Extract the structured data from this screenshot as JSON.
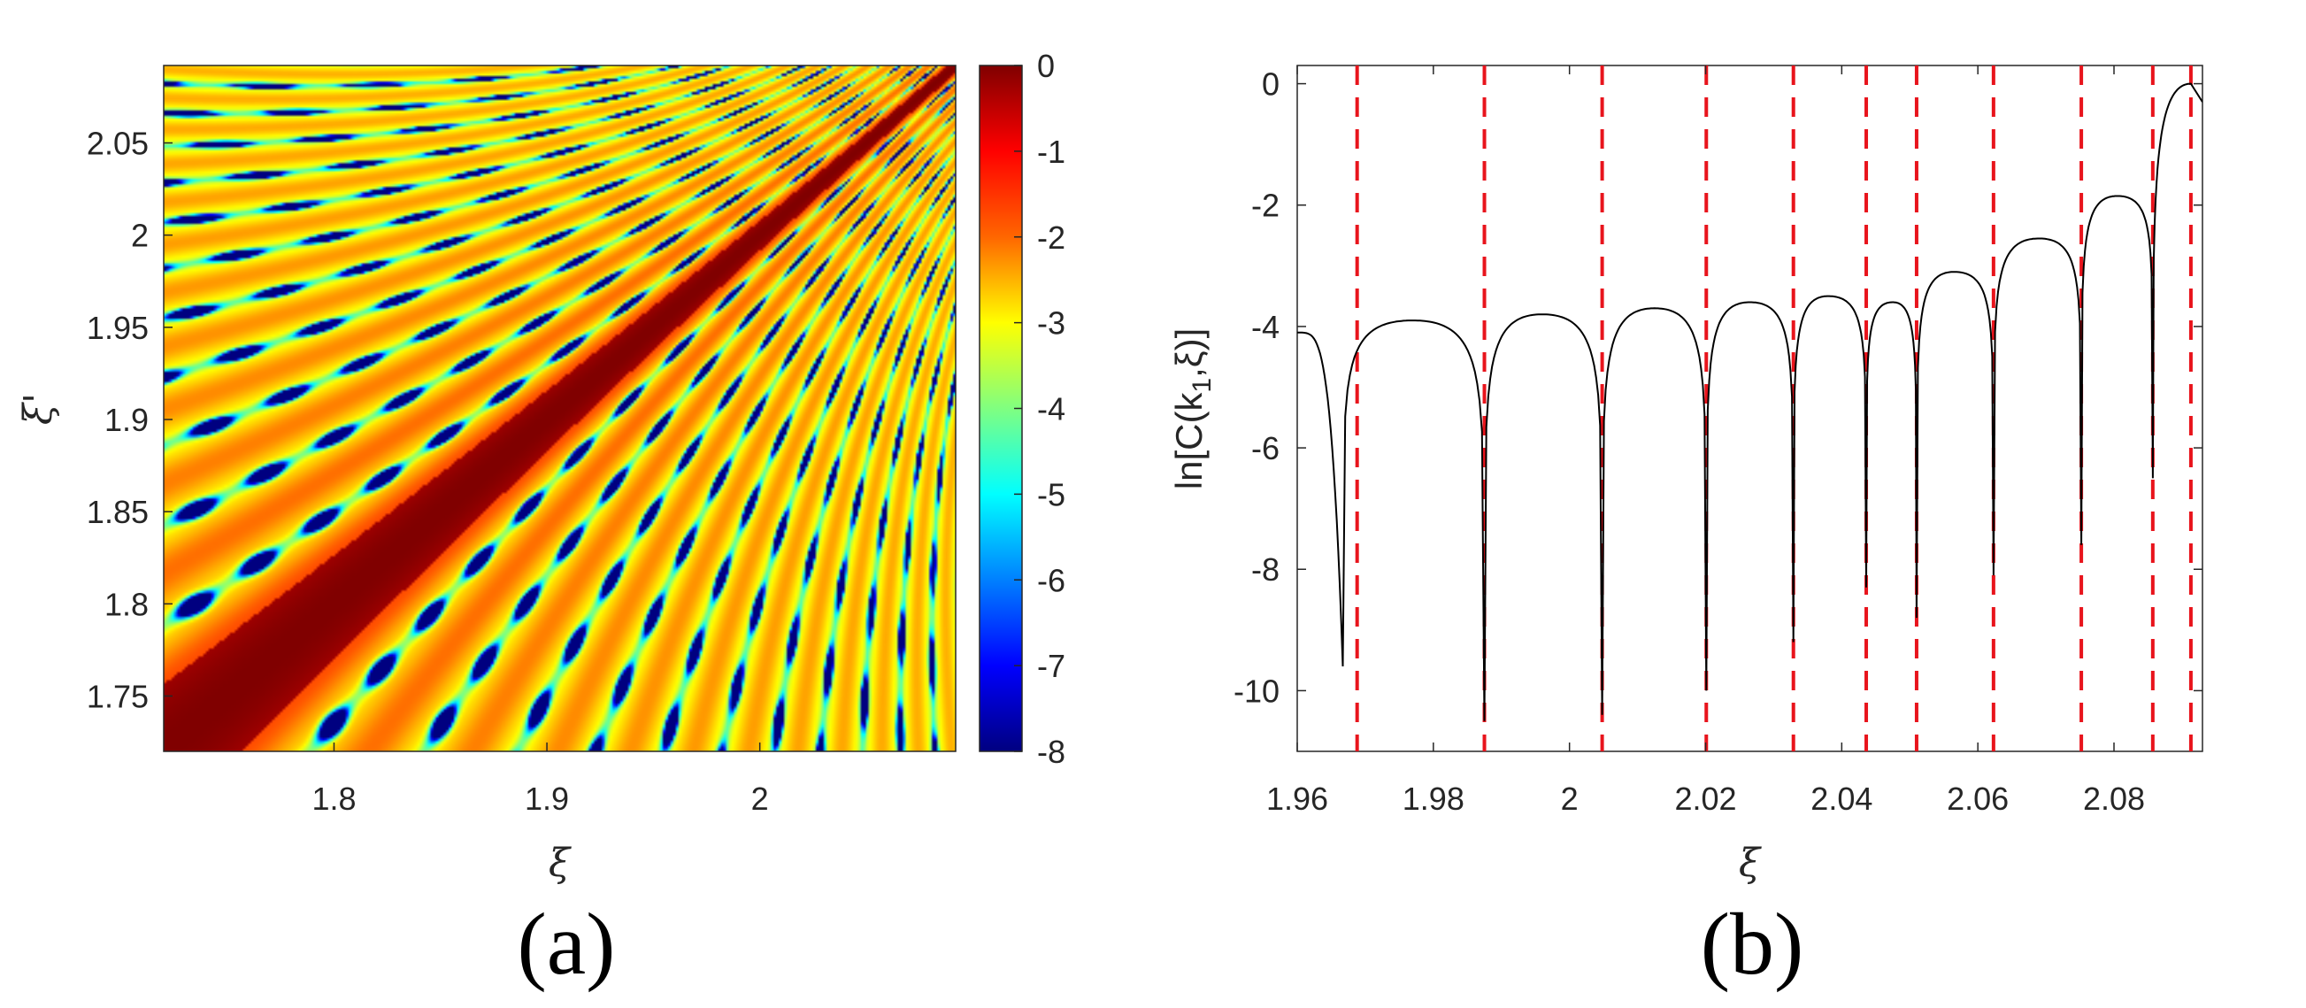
{
  "chart_data": [
    {
      "type": "heatmap",
      "panel_label": "(a)",
      "xlabel": "ξ",
      "ylabel": "ξ'",
      "xlim": [
        1.72,
        2.092
      ],
      "ylim": [
        1.72,
        2.092
      ],
      "xticks": [
        1.8,
        1.9,
        2.0
      ],
      "xtick_labels": [
        "1.8",
        "1.9",
        "2"
      ],
      "yticks": [
        1.75,
        1.8,
        1.85,
        1.9,
        1.95,
        2.0,
        2.05
      ],
      "ytick_labels": [
        "1.75",
        "1.8",
        "1.85",
        "1.9",
        "1.95",
        "2",
        "2.05"
      ],
      "colorbar": {
        "range": [
          -8,
          0
        ],
        "ticks": [
          0,
          -1,
          -2,
          -3,
          -4,
          -5,
          -6,
          -7,
          -8
        ],
        "tick_labels": [
          "0",
          "-1",
          "-2",
          "-3",
          "-4",
          "-5",
          "-6",
          "-7",
          "-8"
        ],
        "colormap": "jet"
      },
      "description_values": "ln correlation, maximum 0 along diagonal ξ = ξ'"
    },
    {
      "type": "line",
      "panel_label": "(b)",
      "xlabel": "ξ",
      "ylabel": "ln[C(k1,ξ)]",
      "ylabel_parts": {
        "main": "ln[C(k",
        "sub": "1",
        "end": ",ξ)]"
      },
      "xlim": [
        1.96,
        2.093
      ],
      "ylim": [
        -11,
        0.3
      ],
      "xticks": [
        1.96,
        1.98,
        2.0,
        2.02,
        2.04,
        2.06,
        2.08
      ],
      "xtick_labels": [
        "1.96",
        "1.98",
        "2",
        "2.02",
        "2.04",
        "2.06",
        "2.08"
      ],
      "yticks": [
        0,
        -2,
        -4,
        -6,
        -8,
        -10
      ],
      "ytick_labels": [
        "0",
        "-2",
        "-4",
        "-6",
        "-8",
        "-10"
      ],
      "dashed_lines_x": [
        1.9688,
        1.9875,
        2.0048,
        2.0201,
        2.0329,
        2.0436,
        2.051,
        2.0623,
        2.0752,
        2.0857,
        2.0913
      ],
      "minima": [
        {
          "x": 1.9667,
          "y": -9.6
        },
        {
          "x": 1.9875,
          "y": -10.5
        },
        {
          "x": 2.0048,
          "y": -10.4
        },
        {
          "x": 2.0201,
          "y": -10.0
        },
        {
          "x": 2.0329,
          "y": -9.2
        },
        {
          "x": 2.0436,
          "y": -8.3
        },
        {
          "x": 2.051,
          "y": -8.8
        },
        {
          "x": 2.0623,
          "y": -8.1
        },
        {
          "x": 2.0752,
          "y": -7.6
        },
        {
          "x": 2.0857,
          "y": -6.5
        }
      ],
      "maxima": [
        {
          "x": 1.977,
          "y": -3.9
        },
        {
          "x": 1.996,
          "y": -3.8
        },
        {
          "x": 2.0125,
          "y": -3.7
        },
        {
          "x": 2.0265,
          "y": -3.6
        },
        {
          "x": 2.038,
          "y": -3.5
        },
        {
          "x": 2.0475,
          "y": -3.6
        },
        {
          "x": 2.0565,
          "y": -3.1
        },
        {
          "x": 2.069,
          "y": -2.55
        },
        {
          "x": 2.0805,
          "y": -1.85
        },
        {
          "x": 2.0913,
          "y": 0.0
        }
      ],
      "start_point": {
        "x": 1.96,
        "y": -4.1
      },
      "colors": {
        "curve": "#000000",
        "dashed": "#e8141c"
      }
    }
  ]
}
